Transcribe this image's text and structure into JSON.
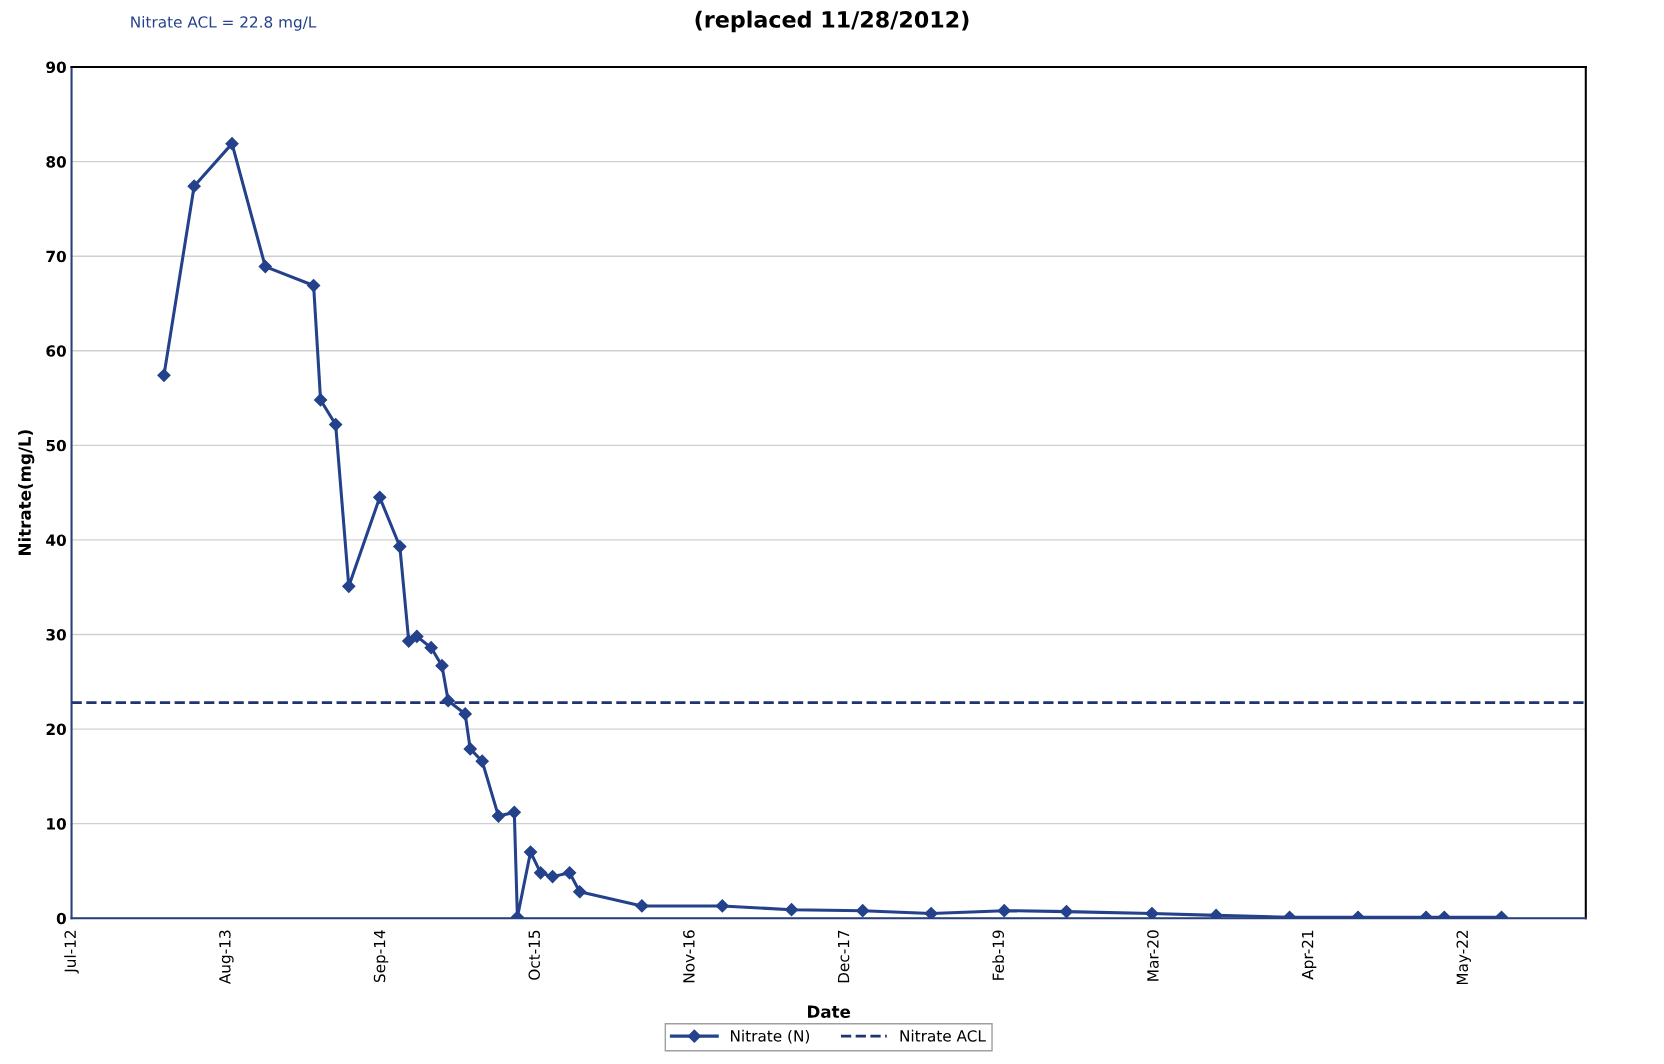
{
  "chart_data": {
    "type": "line",
    "title": "(replaced 11/28/2012)",
    "xlabel": "Date",
    "ylabel": "Nitrate(mg/L)",
    "annotations": [
      "Nitrate ACL = 22.8 mg/L"
    ],
    "xlim": [
      "2012-07-10",
      "2023-03-31"
    ],
    "xticks": [
      {
        "value": "2012-07-10",
        "label": "Jul-12"
      },
      {
        "value": "2013-08-14",
        "label": "Aug-13"
      },
      {
        "value": "2014-09-18",
        "label": "Sep-14"
      },
      {
        "value": "2015-10-23",
        "label": "Oct-15"
      },
      {
        "value": "2016-11-26",
        "label": "Nov-16"
      },
      {
        "value": "2017-12-31",
        "label": "Dec-17"
      },
      {
        "value": "2019-02-04",
        "label": "Feb-19"
      },
      {
        "value": "2020-03-10",
        "label": "Mar-20"
      },
      {
        "value": "2021-04-14",
        "label": "Apr-21"
      },
      {
        "value": "2022-05-19",
        "label": "May-22"
      }
    ],
    "ylim": [
      0,
      90
    ],
    "yticks": [
      0,
      10,
      20,
      30,
      40,
      50,
      60,
      70,
      80,
      90
    ],
    "grid": "y",
    "legend": "bottom",
    "marker": "diamond",
    "line_style": "solid",
    "series": [
      {
        "name": "Nitrate (N)",
        "color": "#24428c",
        "x": [
          "2013-03-06",
          "2013-05-23",
          "2013-08-29",
          "2013-11-23",
          "2014-03-28",
          "2014-04-15",
          "2014-05-24",
          "2014-06-27",
          "2014-09-15",
          "2014-11-06",
          "2014-11-29",
          "2014-12-20",
          "2015-01-26",
          "2015-02-23",
          "2015-03-11",
          "2015-04-24",
          "2015-05-07",
          "2015-06-07",
          "2015-07-19",
          "2015-08-29",
          "2015-09-06",
          "2015-10-10",
          "2015-11-05",
          "2015-12-06",
          "2016-01-19",
          "2016-02-14",
          "2016-07-24",
          "2017-02-17",
          "2017-08-15",
          "2018-02-15",
          "2018-08-11",
          "2019-02-16",
          "2019-07-27",
          "2020-03-04",
          "2020-08-17",
          "2021-02-23",
          "2021-08-19",
          "2022-02-11",
          "2022-03-30",
          "2022-08-25"
        ],
        "values": [
          57.4,
          77.4,
          81.9,
          68.9,
          66.9,
          54.8,
          52.2,
          35.1,
          44.5,
          39.3,
          29.3,
          29.8,
          28.6,
          26.7,
          23.0,
          21.6,
          17.9,
          16.6,
          10.8,
          11.2,
          0.1,
          7.0,
          4.8,
          4.4,
          4.8,
          2.8,
          1.3,
          1.3,
          0.9,
          0.8,
          0.5,
          0.8,
          0.7,
          0.5,
          0.3,
          0.1,
          0.1,
          0.1,
          0.1,
          0.1
        ]
      }
    ],
    "ref_lines": [
      {
        "axis": "y",
        "value": 22.8,
        "label": "Nitrate ACL",
        "color": "#1f3470",
        "line_style": "dashed"
      }
    ]
  }
}
